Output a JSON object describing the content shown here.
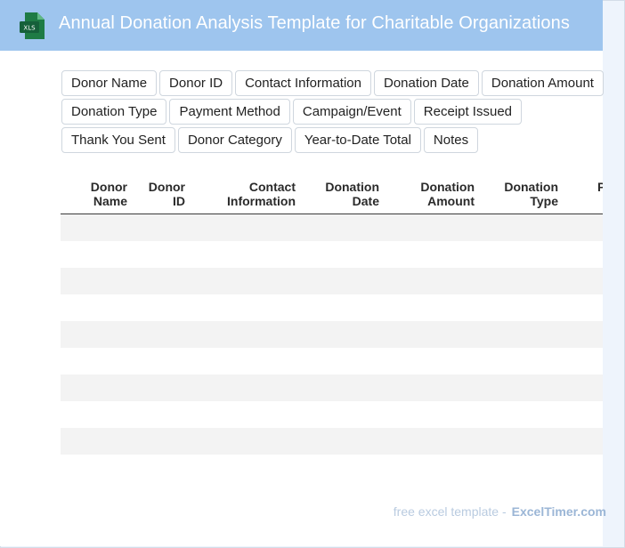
{
  "header": {
    "title": "Annual Donation Analysis Template for Charitable Organizations",
    "icon_label": "XLS",
    "bg_color": "#9ec5ee"
  },
  "fields": {
    "rows": [
      [
        "Donor Name",
        "Donor ID",
        "Contact Information",
        "Donation Date",
        "Donation Amount"
      ],
      [
        "Donation Type",
        "Payment Method",
        "Campaign/Event",
        "Receipt Issued"
      ],
      [
        "Thank You Sent",
        "Donor Category",
        "Year-to-Date Total",
        "Notes"
      ]
    ]
  },
  "table": {
    "headers": [
      [
        "Donor",
        "Name"
      ],
      [
        "Donor",
        "ID"
      ],
      [
        "Contact",
        "Information"
      ],
      [
        "Donation",
        "Date"
      ],
      [
        "Donation",
        "Amount"
      ],
      [
        "Donation",
        "Type"
      ],
      [
        "P",
        ""
      ]
    ],
    "row_count": 10
  },
  "footer": {
    "prefix": "free excel template -",
    "brand": "ExcelTimer.com"
  }
}
